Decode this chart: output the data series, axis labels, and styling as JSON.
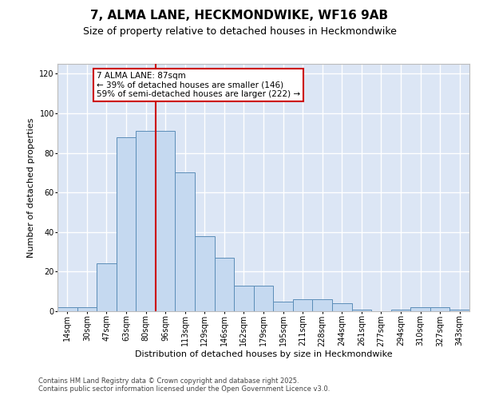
{
  "title1": "7, ALMA LANE, HECKMONDWIKE, WF16 9AB",
  "title2": "Size of property relative to detached houses in Heckmondwike",
  "xlabel": "Distribution of detached houses by size in Heckmondwike",
  "ylabel": "Number of detached properties",
  "categories": [
    "14sqm",
    "30sqm",
    "47sqm",
    "63sqm",
    "80sqm",
    "96sqm",
    "113sqm",
    "129sqm",
    "146sqm",
    "162sqm",
    "179sqm",
    "195sqm",
    "211sqm",
    "228sqm",
    "244sqm",
    "261sqm",
    "277sqm",
    "294sqm",
    "310sqm",
    "327sqm",
    "343sqm"
  ],
  "values": [
    2,
    2,
    24,
    88,
    91,
    91,
    70,
    38,
    27,
    13,
    13,
    5,
    6,
    6,
    4,
    1,
    0,
    1,
    2,
    2,
    1
  ],
  "bar_color": "#c5d9f0",
  "bar_edge_color": "#5b8db8",
  "bg_color": "#dce6f5",
  "grid_color": "#ffffff",
  "annotation_line1": "7 ALMA LANE: 87sqm",
  "annotation_line2": "← 39% of detached houses are smaller (146)",
  "annotation_line3": "59% of semi-detached houses are larger (222) →",
  "annotation_box_color": "#ffffff",
  "annotation_box_edge_color": "#cc0000",
  "vline_color": "#cc0000",
  "vline_x_index": 4.5,
  "ylim": [
    0,
    125
  ],
  "yticks": [
    0,
    20,
    40,
    60,
    80,
    100,
    120
  ],
  "footer1": "Contains HM Land Registry data © Crown copyright and database right 2025.",
  "footer2": "Contains public sector information licensed under the Open Government Licence v3.0.",
  "title1_fontsize": 11,
  "title2_fontsize": 9,
  "tick_fontsize": 7,
  "ylabel_fontsize": 8,
  "xlabel_fontsize": 8,
  "annotation_fontsize": 7.5,
  "footer_fontsize": 6
}
